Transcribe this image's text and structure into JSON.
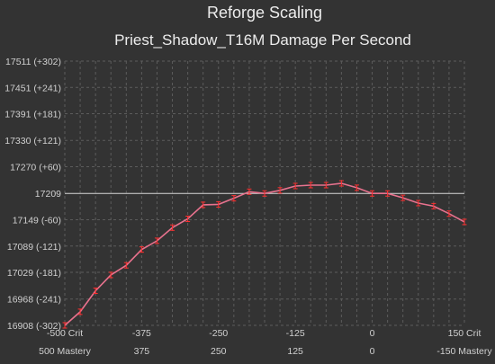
{
  "chart_data": {
    "type": "line",
    "title": "Reforge Scaling",
    "subtitle": "Priest_Shadow_T16M Damage Per Second",
    "xlabel": "",
    "ylabel": "",
    "ylim": [
      16908,
      17511
    ],
    "xlim": [
      -500,
      150
    ],
    "grid": true,
    "baseline": 17209,
    "y_ticks": [
      {
        "value": 17511,
        "label": "17511 (+302)"
      },
      {
        "value": 17451,
        "label": "17451 (+241)"
      },
      {
        "value": 17391,
        "label": "17391 (+181)"
      },
      {
        "value": 17330,
        "label": "17330 (+121)"
      },
      {
        "value": 17270,
        "label": "17270 (+60)"
      },
      {
        "value": 17209,
        "label": "17209"
      },
      {
        "value": 17149,
        "label": "17149 (-60)"
      },
      {
        "value": 17089,
        "label": "17089 (-121)"
      },
      {
        "value": 17029,
        "label": "17029 (-181)"
      },
      {
        "value": 16968,
        "label": "16968 (-241)"
      },
      {
        "value": 16908,
        "label": "16908 (-302)"
      }
    ],
    "x_ticks_primary": [
      {
        "value": -500,
        "label": "-500 Crit"
      },
      {
        "value": -375,
        "label": "-375"
      },
      {
        "value": -250,
        "label": "-250"
      },
      {
        "value": -125,
        "label": "-125"
      },
      {
        "value": 0,
        "label": "0"
      },
      {
        "value": 150,
        "label": "150 Crit"
      }
    ],
    "x_ticks_secondary": [
      {
        "value": -500,
        "label": "500 Mastery"
      },
      {
        "value": -375,
        "label": "375"
      },
      {
        "value": -250,
        "label": "250"
      },
      {
        "value": -125,
        "label": "125"
      },
      {
        "value": 0,
        "label": "0"
      },
      {
        "value": 150,
        "label": "-150 Mastery"
      }
    ],
    "series": [
      {
        "color": "#e8728e",
        "error_color": "#ff3030",
        "x": [
          -500,
          -475,
          -450,
          -425,
          -400,
          -375,
          -350,
          -325,
          -300,
          -275,
          -250,
          -225,
          -200,
          -175,
          -150,
          -125,
          -100,
          -75,
          -50,
          -25,
          0,
          25,
          50,
          75,
          100,
          125,
          150
        ],
        "y": [
          16908,
          16939,
          16987,
          17023,
          17045,
          17081,
          17101,
          17131,
          17151,
          17183,
          17184,
          17198,
          17213,
          17209,
          17216,
          17226,
          17228,
          17228,
          17232,
          17222,
          17209,
          17209,
          17199,
          17187,
          17180,
          17163,
          17144
        ]
      }
    ]
  }
}
